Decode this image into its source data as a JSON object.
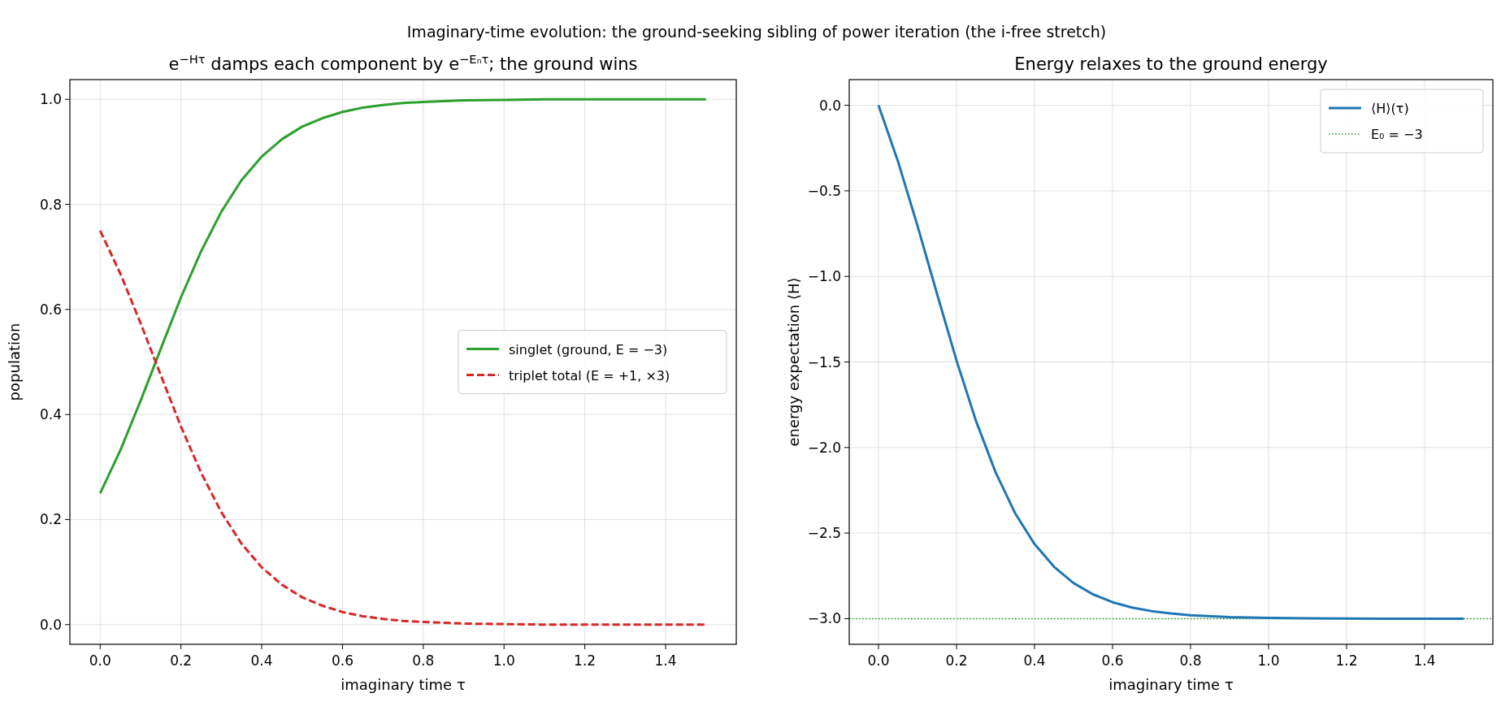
{
  "chart_data": [
    {
      "type": "line",
      "subtitle": "Imaginary-time evolution: the ground-seeking sibling of power iteration (the i-free stretch)",
      "title": "e$^{−Hτ}$ damps each component by e$^{−Eₙτ}$; the ground wins",
      "xlabel": "imaginary time τ",
      "ylabel": "population",
      "x": [
        0,
        0.05,
        0.1,
        0.15,
        0.2,
        0.25,
        0.3,
        0.35,
        0.4,
        0.45,
        0.5,
        0.55,
        0.6,
        0.65,
        0.7,
        0.75,
        0.8,
        0.9,
        1.0,
        1.1,
        1.2,
        1.3,
        1.4,
        1.5
      ],
      "series": [
        {
          "name": "singlet (ground, E = −3)",
          "color": "#2ca02c",
          "line_style": "solid",
          "values": [
            0.25,
            0.332,
            0.426,
            0.525,
            0.623,
            0.711,
            0.786,
            0.846,
            0.891,
            0.924,
            0.948,
            0.964,
            0.976,
            0.984,
            0.989,
            0.993,
            0.995,
            0.998,
            0.999,
            1.0,
            1.0,
            1.0,
            1.0,
            1.0
          ]
        },
        {
          "name": "triplet total (E = +1, ×3)",
          "color": "#d62728",
          "line_style": "dashed",
          "values": [
            0.75,
            0.668,
            0.574,
            0.475,
            0.377,
            0.289,
            0.214,
            0.154,
            0.109,
            0.076,
            0.052,
            0.036,
            0.024,
            0.016,
            0.011,
            0.007,
            0.005,
            0.002,
            0.001,
            0.0,
            0.0,
            0.0,
            0.0,
            0.0
          ]
        }
      ],
      "xlim": [
        -0.075,
        1.575
      ],
      "xticks": [
        {
          "value": 0,
          "label": "0.0"
        },
        {
          "value": 0.2,
          "label": "0.2"
        },
        {
          "value": 0.4,
          "label": "0.4"
        },
        {
          "value": 0.6,
          "label": "0.6"
        },
        {
          "value": 0.8,
          "label": "0.8"
        },
        {
          "value": 1,
          "label": "1.0"
        },
        {
          "value": 1.2,
          "label": "1.2"
        },
        {
          "value": 1.4,
          "label": "1.4"
        }
      ],
      "ylim": [
        -0.0375,
        1.0375
      ],
      "yticks": [
        {
          "value": 0,
          "label": "0.0"
        },
        {
          "value": 0.2,
          "label": "0.2"
        },
        {
          "value": 0.4,
          "label": "0.4"
        },
        {
          "value": 0.6,
          "label": "0.6"
        },
        {
          "value": 0.8,
          "label": "0.8"
        },
        {
          "value": 1,
          "label": "1.0"
        }
      ],
      "grid": true,
      "legend": "right"
    },
    {
      "type": "line",
      "title": "Energy relaxes to the ground energy",
      "xlabel": "imaginary time τ",
      "ylabel": "energy expectation ⟨H⟩",
      "x": [
        0,
        0.05,
        0.1,
        0.15,
        0.2,
        0.25,
        0.3,
        0.35,
        0.4,
        0.45,
        0.5,
        0.55,
        0.6,
        0.65,
        0.7,
        0.75,
        0.8,
        0.9,
        1.0,
        1.1,
        1.2,
        1.3,
        1.4,
        1.5
      ],
      "series": [
        {
          "name": "⟨H⟩(τ)",
          "color": "#1f77b4",
          "line_style": "solid",
          "values": [
            0,
            -0.328,
            -0.704,
            -1.101,
            -1.491,
            -1.845,
            -2.144,
            -2.383,
            -2.564,
            -2.697,
            -2.792,
            -2.858,
            -2.904,
            -2.935,
            -2.956,
            -2.97,
            -2.98,
            -2.991,
            -2.996,
            -2.998,
            -2.999,
            -3.0,
            -3.0,
            -3.0
          ]
        }
      ],
      "ref_lines": [
        {
          "axis": "y",
          "value": -3,
          "label": "E₀ = −3",
          "color": "#2ca02c",
          "line_style": "dotted"
        }
      ],
      "xlim": [
        -0.075,
        1.575
      ],
      "xticks": [
        {
          "value": 0,
          "label": "0.0"
        },
        {
          "value": 0.2,
          "label": "0.2"
        },
        {
          "value": 0.4,
          "label": "0.4"
        },
        {
          "value": 0.6,
          "label": "0.6"
        },
        {
          "value": 0.8,
          "label": "0.8"
        },
        {
          "value": 1,
          "label": "1.0"
        },
        {
          "value": 1.2,
          "label": "1.2"
        },
        {
          "value": 1.4,
          "label": "1.4"
        }
      ],
      "ylim": [
        -3.15,
        0.15
      ],
      "yticks": [
        {
          "value": 0,
          "label": "0.0"
        },
        {
          "value": -0.5,
          "label": "−0.5"
        },
        {
          "value": -1,
          "label": "−1.0"
        },
        {
          "value": -1.5,
          "label": "−1.5"
        },
        {
          "value": -2,
          "label": "−2.0"
        },
        {
          "value": -2.5,
          "label": "−2.5"
        },
        {
          "value": -3,
          "label": "−3.0"
        }
      ],
      "grid": true,
      "legend": "top right"
    }
  ]
}
